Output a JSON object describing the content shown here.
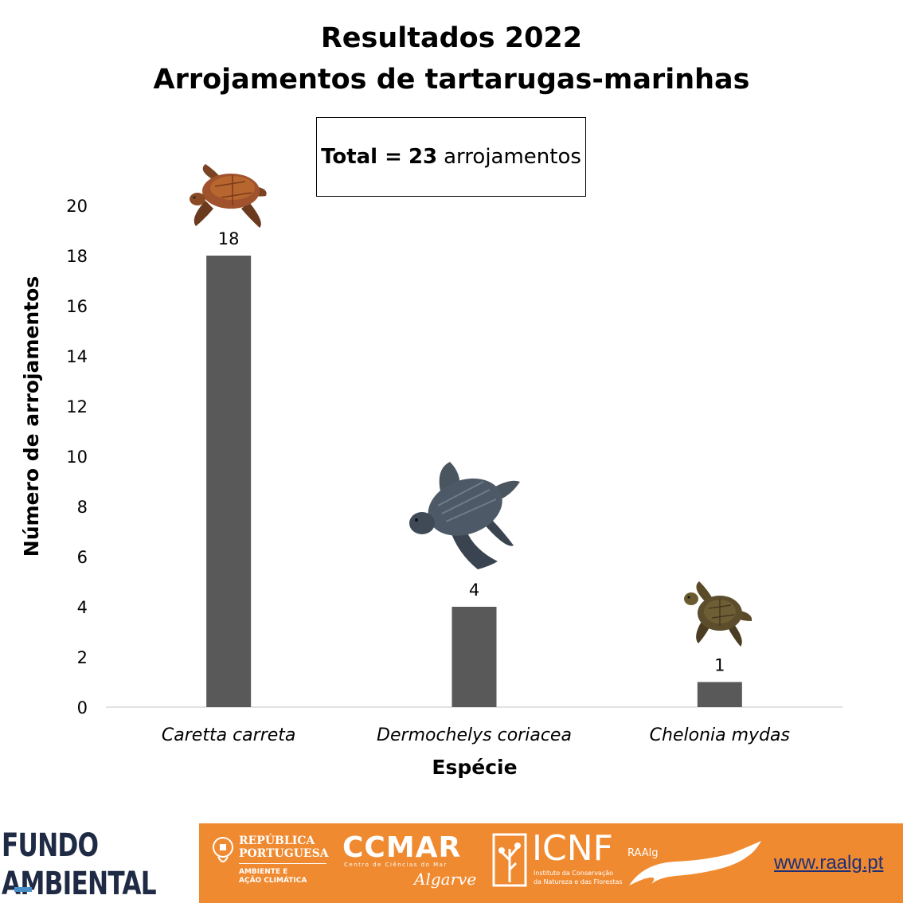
{
  "title_line1": "Resultados 2022",
  "title_line2": "Arrojamentos de tartarugas-marinhas",
  "total_box": {
    "label": "Total =",
    "value": "23",
    "unit": "arrojamentos"
  },
  "chart_data": {
    "type": "bar",
    "categories": [
      "Caretta carreta",
      "Dermochelys coriacea",
      "Chelonia mydas"
    ],
    "values": [
      18,
      4,
      1
    ],
    "data_labels": [
      "18",
      "4",
      "1"
    ],
    "xlabel": "Espécie",
    "ylabel": "Número de arrojamentos",
    "ylim": [
      0,
      20
    ],
    "yticks": [
      "0",
      "2",
      "4",
      "6",
      "8",
      "10",
      "12",
      "14",
      "16",
      "18",
      "20"
    ],
    "bar_color": "#595959",
    "grid": false,
    "legend": "none"
  },
  "icons": [
    "loggerhead-turtle-icon",
    "leatherback-turtle-icon",
    "green-turtle-icon"
  ],
  "footer": {
    "fundo_line1": "FUNDO",
    "fundo_line2": "AMBIENTAL",
    "republica_line1": "REPÚBLICA",
    "republica_line2": "PORTUGUESA",
    "republica_line3": "AMBIENTE E",
    "republica_line4": "AÇÃO CLIMÁTICA",
    "ccmar": "CCMAR",
    "ccmar_sub": "Centro de Ciências do Mar",
    "algarve": "Algarve",
    "icnf": "ICNF",
    "icnf_sub1": "Instituto da Conservação",
    "icnf_sub2": "da Natureza e das Florestas",
    "raalg": "RAAlg",
    "url": "www.raalg.pt",
    "band_color": "#f08a30"
  }
}
